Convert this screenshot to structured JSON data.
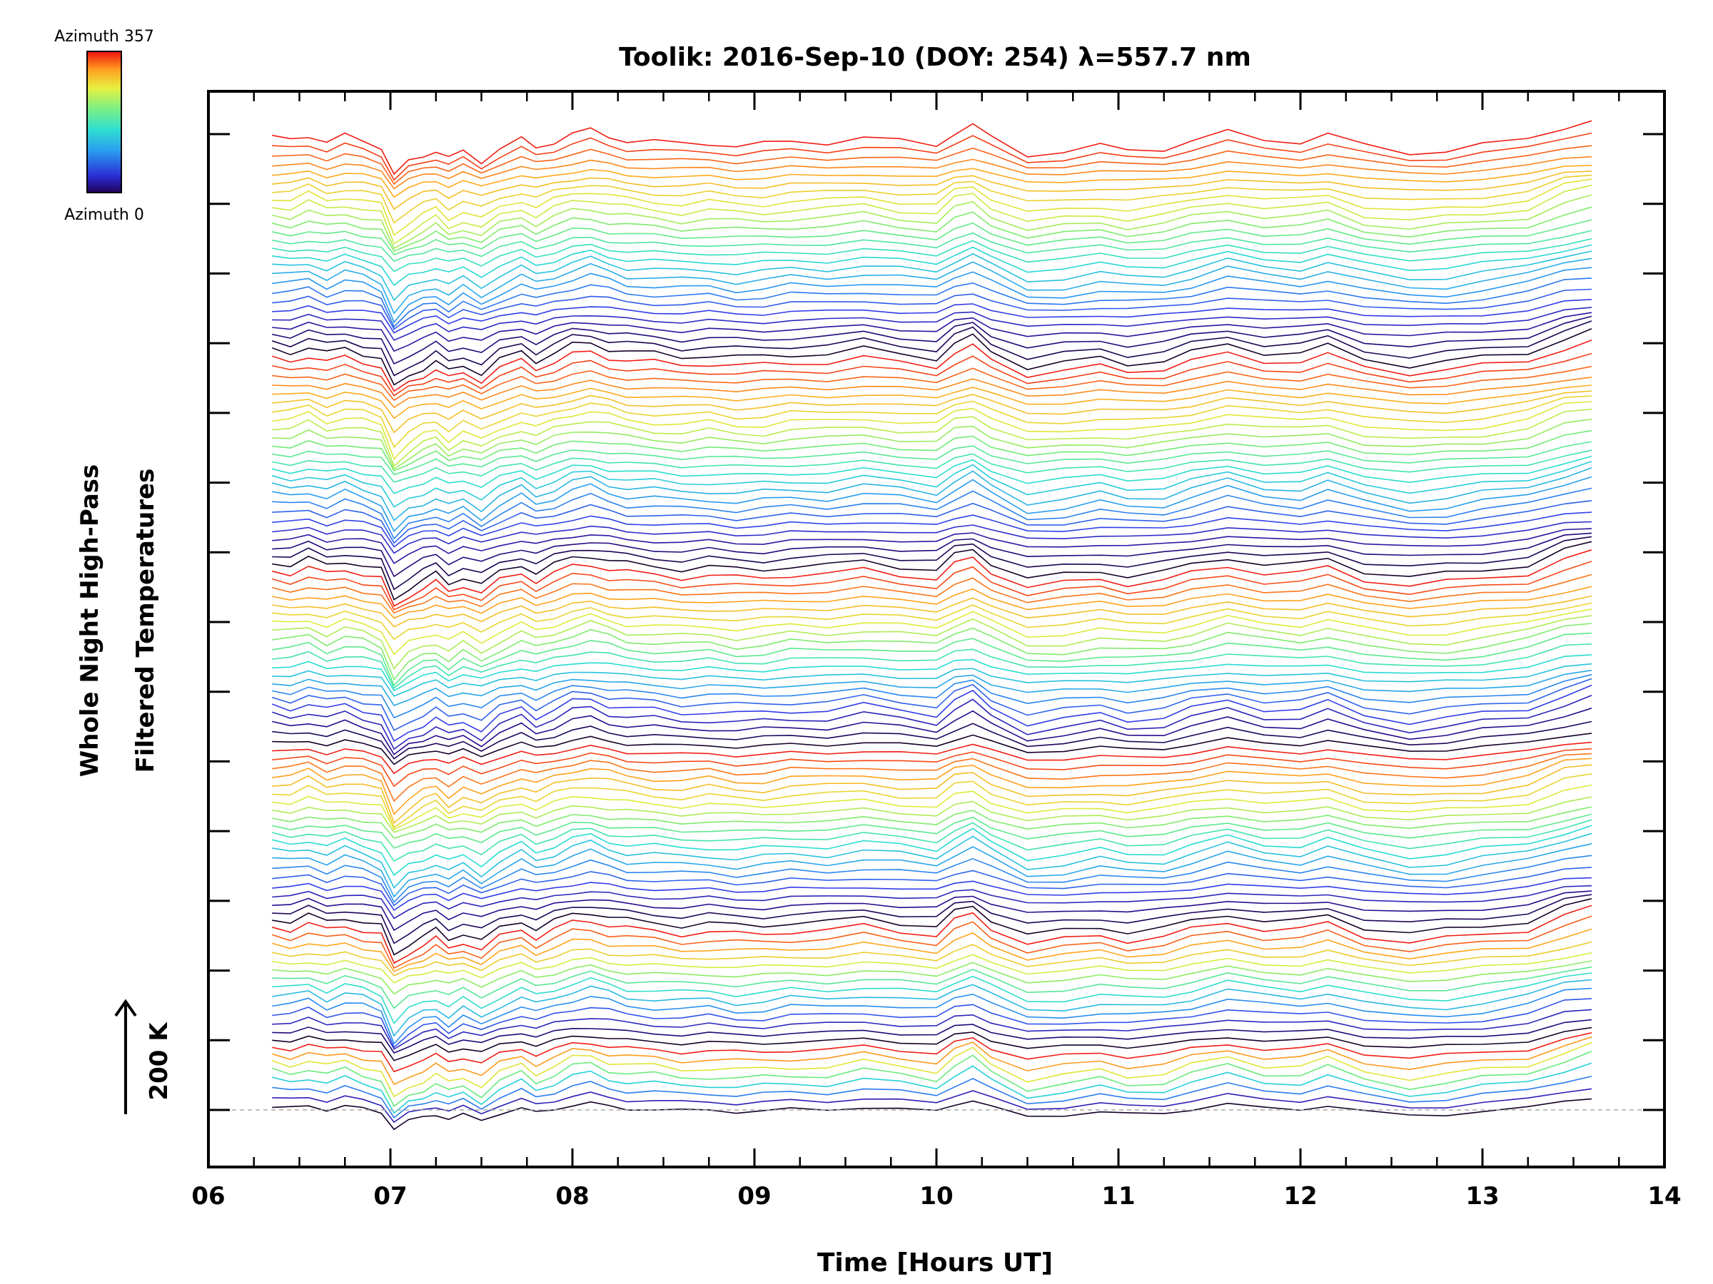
{
  "chart_data": {
    "type": "line",
    "title": "Toolik: 2016-Sep-10 (DOY: 254) λ=557.7 nm",
    "xlabel": "Time [Hours UT]",
    "ylabel_line1": "Whole Night High-Pass",
    "ylabel_line2": "Filtered Temperatures",
    "xlim": [
      6,
      14
    ],
    "x_tick_labels": [
      "06",
      "07",
      "08",
      "09",
      "10",
      "11",
      "12",
      "13",
      "14"
    ],
    "y_ticks_count": 15,
    "scale_bar_label": "200 K",
    "scale_bar_kelvin": 200,
    "colorbar": {
      "top_label": "Azimuth 357",
      "bottom_label": "Azimuth 0",
      "min": 0,
      "max": 357
    },
    "baseline_dashed": true,
    "x": [
      6.35,
      6.45,
      6.55,
      6.65,
      6.75,
      6.85,
      6.95,
      7.02,
      7.1,
      7.18,
      7.25,
      7.32,
      7.4,
      7.5,
      7.6,
      7.72,
      7.8,
      7.9,
      8.0,
      8.1,
      8.2,
      8.3,
      8.45,
      8.6,
      8.75,
      8.9,
      9.05,
      9.2,
      9.4,
      9.6,
      9.8,
      10.0,
      10.1,
      10.2,
      10.3,
      10.5,
      10.7,
      10.9,
      11.05,
      11.25,
      11.4,
      11.6,
      11.8,
      12.0,
      12.15,
      12.35,
      12.6,
      12.8,
      13.0,
      13.25,
      13.45,
      13.6
    ],
    "anomaly_pattern": [
      0.25,
      0.15,
      0.45,
      0.05,
      0.35,
      0.1,
      -0.2,
      -1.8,
      -1.1,
      -0.7,
      -0.4,
      -0.9,
      -0.5,
      -1.0,
      -0.3,
      0.15,
      -0.3,
      0.1,
      0.5,
      0.65,
      0.35,
      0.15,
      0.05,
      -0.1,
      0.0,
      -0.15,
      -0.1,
      0.05,
      0.05,
      0.3,
      0.05,
      -0.15,
      0.6,
      0.95,
      0.25,
      -0.65,
      -0.45,
      -0.2,
      -0.45,
      -0.3,
      0.1,
      0.55,
      0.15,
      0.1,
      0.45,
      -0.2,
      -0.55,
      -0.4,
      -0.15,
      0.15,
      0.9,
      1.25
    ],
    "series_count": 115,
    "group_sizes": [
      8,
      14,
      21,
      21,
      25,
      26
    ],
    "series_color_scale": "rainbow (azimuth 0 = dark blue/black, azimuth 357 = red)"
  }
}
